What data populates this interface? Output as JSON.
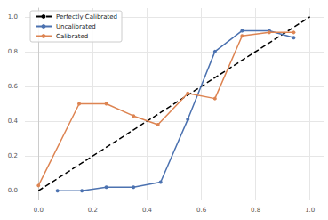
{
  "chart_data": {
    "type": "line",
    "xlim": [
      -0.05,
      1.05
    ],
    "xticks": [
      {
        "value": 0,
        "label": "0.0"
      },
      0.2,
      0.4,
      0.6,
      0.8,
      {
        "value": 1,
        "label": "1.0"
      }
    ],
    "ylim": [
      -0.05,
      1.05
    ],
    "yticks": [
      {
        "value": 0,
        "label": "0.0"
      },
      0.2,
      0.4,
      0.6,
      0.8,
      {
        "value": 1,
        "label": "1.0"
      }
    ],
    "grid": true,
    "legend": "upper left",
    "series": [
      {
        "name": "Perfectly Calibrated",
        "color": "#000000",
        "line_style": "dashed",
        "marker": "none",
        "x": [
          0,
          1
        ],
        "values": [
          0,
          1
        ]
      },
      {
        "name": "Uncalibrated",
        "color": "#4c72b0",
        "line_style": "solid",
        "marker": "circle",
        "x": [
          0.07,
          0.16,
          0.25,
          0.35,
          0.45,
          0.55,
          0.65,
          0.75,
          0.85,
          0.94
        ],
        "values": [
          0.0,
          0.0,
          0.02,
          0.02,
          0.05,
          0.41,
          0.8,
          0.92,
          0.92,
          0.88
        ]
      },
      {
        "name": "Calibrated",
        "color": "#dd8452",
        "line_style": "solid",
        "marker": "circle",
        "x": [
          0.0,
          0.15,
          0.25,
          0.35,
          0.44,
          0.55,
          0.65,
          0.75,
          0.85,
          0.94
        ],
        "values": [
          0.03,
          0.5,
          0.5,
          0.43,
          0.38,
          0.56,
          0.53,
          0.89,
          0.91,
          0.91
        ]
      }
    ]
  }
}
